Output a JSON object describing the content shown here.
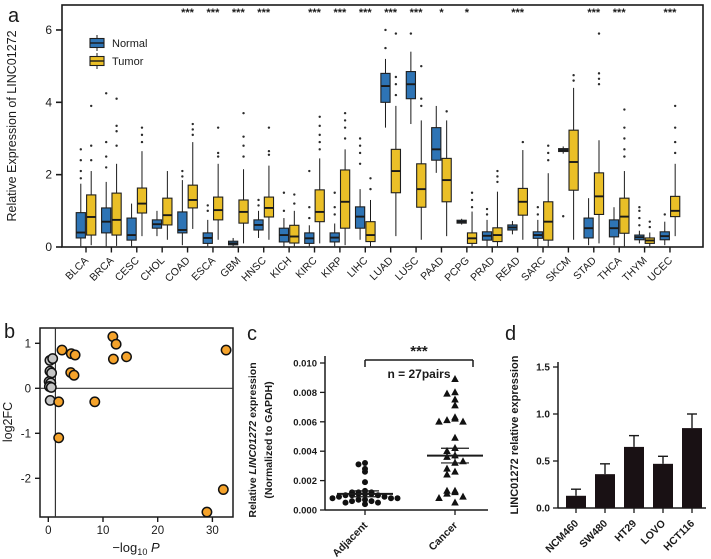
{
  "panel_letters": {
    "a": "a",
    "b": "b",
    "c": "c",
    "d": "d"
  },
  "colors": {
    "normal_box": "#2e74b5",
    "tumor_box": "#eabf27",
    "box_stroke": "#1f1f1f",
    "orange_point": "#f5a32b",
    "gray_point": "#c6c6c6",
    "point_stroke": "#111111",
    "bar_fill": "#191114",
    "axis": "#1a1a1a"
  },
  "chart_data": [
    {
      "type": "box",
      "panel": "a",
      "ylabel": "Relative Expression of LINC01272",
      "ylim": [
        0,
        6.69
      ],
      "yticks": [
        0,
        2,
        4,
        6
      ],
      "legend": [
        {
          "label": "Normal",
          "key": "normal_box"
        },
        {
          "label": "Tumor",
          "key": "tumor_box"
        }
      ],
      "categories": [
        "BLCA",
        "BRCA",
        "CESC",
        "CHOL",
        "COAD",
        "ESCA",
        "GBM",
        "HNSC",
        "KICH",
        "KIRC",
        "KIRP",
        "LIHC",
        "LUAD",
        "LUSC",
        "PAAD",
        "PCPG",
        "PRAD",
        "READ",
        "SARC",
        "SKCM",
        "STAD",
        "THCA",
        "THYM",
        "UCEC"
      ],
      "significance": [
        "",
        "",
        "",
        "",
        "***",
        "***",
        "***",
        "***",
        "",
        "***",
        "***",
        "***",
        "***",
        "***",
        "*",
        "*",
        "",
        "***",
        "",
        "",
        "***",
        "***",
        "",
        "***"
      ],
      "normal": [
        [
          0.02,
          0.25,
          0.4,
          0.95,
          1.75
        ],
        [
          0.02,
          0.39,
          0.7,
          1.08,
          1.8
        ],
        [
          0.02,
          0.19,
          0.33,
          0.8,
          1.2
        ],
        [
          0.3,
          0.52,
          0.63,
          0.75,
          1.0
        ],
        [
          0.05,
          0.39,
          0.47,
          0.97,
          1.85
        ],
        [
          0.02,
          0.1,
          0.25,
          0.39,
          0.75
        ],
        [
          0.02,
          0.06,
          0.1,
          0.16,
          0.25
        ],
        [
          0.25,
          0.47,
          0.61,
          0.75,
          1.0
        ],
        [
          0.02,
          0.14,
          0.33,
          0.52,
          0.8
        ],
        [
          0.02,
          0.1,
          0.24,
          0.39,
          0.6
        ],
        [
          0.02,
          0.14,
          0.26,
          0.39,
          0.65
        ],
        [
          0.2,
          0.52,
          0.84,
          1.11,
          1.6
        ],
        [
          3.3,
          4.0,
          4.45,
          4.8,
          5.2
        ],
        [
          3.4,
          4.1,
          4.5,
          4.85,
          5.4
        ],
        [
          2.05,
          2.4,
          2.7,
          3.3,
          3.9
        ],
        [
          0.62,
          0.66,
          0.7,
          0.74,
          0.78
        ],
        [
          0.02,
          0.19,
          0.31,
          0.42,
          0.75
        ],
        [
          0.35,
          0.47,
          0.54,
          0.61,
          0.72
        ],
        [
          0.02,
          0.24,
          0.33,
          0.42,
          0.75
        ],
        [
          2.58,
          2.64,
          2.68,
          2.72,
          2.78
        ],
        [
          0.05,
          0.25,
          0.52,
          0.8,
          1.35
        ],
        [
          0.05,
          0.28,
          0.52,
          0.75,
          1.1
        ],
        [
          0.1,
          0.2,
          0.27,
          0.33,
          0.45
        ],
        [
          0.05,
          0.2,
          0.3,
          0.42,
          0.7
        ]
      ],
      "tumor": [
        [
          0.05,
          0.33,
          0.83,
          1.44,
          2.1
        ],
        [
          0.03,
          0.33,
          0.75,
          1.49,
          2.3
        ],
        [
          0.3,
          0.94,
          1.2,
          1.63,
          2.65
        ],
        [
          0.2,
          0.61,
          0.88,
          1.35,
          2.1
        ],
        [
          0.5,
          1.08,
          1.3,
          1.71,
          2.9
        ],
        [
          0.2,
          0.75,
          1.02,
          1.38,
          2.3
        ],
        [
          0.1,
          0.66,
          0.97,
          1.3,
          2.15
        ],
        [
          0.2,
          0.83,
          1.08,
          1.38,
          2.25
        ],
        [
          0.02,
          0.11,
          0.29,
          0.6,
          1.0
        ],
        [
          0.1,
          0.7,
          0.97,
          1.58,
          2.45
        ],
        [
          0.05,
          0.52,
          1.25,
          2.13,
          2.7
        ],
        [
          0.02,
          0.15,
          0.33,
          0.7,
          1.3
        ],
        [
          0.3,
          1.5,
          2.1,
          2.7,
          3.9
        ],
        [
          0.2,
          1.1,
          1.6,
          2.3,
          3.5
        ],
        [
          0.3,
          1.25,
          1.85,
          2.45,
          3.5
        ],
        [
          0.02,
          0.1,
          0.24,
          0.39,
          0.98
        ],
        [
          0.02,
          0.15,
          0.33,
          0.53,
          1.53
        ],
        [
          0.2,
          0.88,
          1.25,
          1.62,
          2.68
        ],
        [
          0.02,
          0.19,
          0.7,
          1.25,
          2.04
        ],
        [
          0.2,
          1.57,
          2.35,
          3.23,
          4.4
        ],
        [
          0.1,
          0.9,
          1.4,
          2.05,
          2.95
        ],
        [
          0.02,
          0.38,
          0.84,
          1.35,
          2.1
        ],
        [
          0.02,
          0.1,
          0.18,
          0.25,
          0.4
        ],
        [
          0.3,
          0.84,
          1.0,
          1.4,
          2.3
        ]
      ],
      "normal_outliers": [
        [
          1.9,
          2.1,
          2.4,
          2.7
        ],
        [
          2.2,
          2.5,
          2.9,
          4.25
        ],
        [],
        [],
        [
          1.95,
          2.1
        ],
        [
          1.0,
          1.15
        ],
        [],
        [
          1.15,
          1.3
        ],
        [
          1.0,
          1.5
        ],
        [
          0.8,
          1.1,
          2.1
        ],
        [
          0.9,
          1.1,
          1.5
        ],
        [
          2.3,
          2.6,
          2.8,
          3.0
        ],
        [
          5.5,
          6.0
        ],
        [
          5.9
        ],
        [],
        [],
        [
          0.9,
          1.05
        ],
        [],
        [
          0.9,
          1.1
        ],
        [
          0.85
        ],
        [],
        [],
        [
          0.6,
          0.8,
          1.0,
          1.1
        ],
        [
          0.9
        ]
      ],
      "tumor_outliers": [
        [
          2.4,
          2.8,
          3.9
        ],
        [
          2.8,
          3.2,
          3.35,
          4.1
        ],
        [
          2.9,
          3.1,
          3.3
        ],
        [],
        [
          3.1,
          3.25,
          3.4
        ],
        [
          2.5,
          2.6,
          3.3
        ],
        [
          2.5,
          2.8,
          3.05,
          3.7
        ],
        [
          2.55,
          2.65,
          3.3
        ],
        [
          1.2,
          1.45
        ],
        [
          2.7,
          2.9,
          3.1,
          3.35,
          3.6
        ],
        [
          3.0,
          3.3,
          3.5,
          3.7
        ],
        [
          1.6,
          1.9
        ],
        [
          4.2,
          4.5,
          4.7,
          5.9
        ],
        [
          3.9,
          4.1,
          5.0
        ],
        [
          3.75
        ],
        [
          1.1,
          1.3,
          1.5
        ],
        [
          1.8,
          1.95,
          2.1
        ],
        [
          2.9
        ],
        [
          2.4,
          2.6,
          2.8
        ],
        [
          4.6,
          4.75
        ],
        [
          4.5,
          4.65,
          4.8,
          5.9
        ],
        [
          2.5,
          2.7,
          3.0,
          3.3,
          3.8
        ],
        [
          0.55,
          0.7
        ],
        [
          2.6,
          2.9,
          3.3,
          3.9
        ]
      ]
    },
    {
      "type": "scatter",
      "panel": "b",
      "xlabel_parts": [
        {
          "t": "−log"
        },
        {
          "t": "10",
          "style": "sub"
        },
        {
          "t": " "
        },
        {
          "t": "P",
          "style": "italic"
        }
      ],
      "ylabel": "log2FC",
      "xticks": [
        0,
        10,
        20,
        30
      ],
      "yticks": [
        1,
        0,
        -1,
        -2
      ],
      "xlim": [
        -1.5,
        33.8
      ],
      "ylim": [
        -2.85,
        1.34
      ],
      "vline": 1.3,
      "hline": 0,
      "series": [
        {
          "name": "not-significant",
          "color_key": "gray_point",
          "points": [
            [
              0.3,
              0.62
            ],
            [
              0.8,
              0.66
            ],
            [
              0.3,
              0.38
            ],
            [
              0.6,
              0.34
            ],
            [
              0.15,
              0.15
            ],
            [
              0.45,
              0.12
            ],
            [
              0.2,
              0.04
            ],
            [
              0.55,
              0.02
            ],
            [
              0.35,
              -0.27
            ]
          ]
        },
        {
          "name": "significant",
          "color_key": "orange_point",
          "points": [
            [
              2.5,
              0.85
            ],
            [
              4.2,
              0.77
            ],
            [
              4.9,
              0.74
            ],
            [
              11.8,
              1.15
            ],
            [
              12.4,
              0.98
            ],
            [
              11.9,
              0.65
            ],
            [
              14.3,
              0.7
            ],
            [
              32.5,
              0.85
            ],
            [
              4.1,
              0.35
            ],
            [
              4.7,
              0.29
            ],
            [
              1.9,
              -0.3
            ],
            [
              8.5,
              -0.3
            ],
            [
              1.9,
              -1.1
            ],
            [
              32.0,
              -2.25
            ],
            [
              29.0,
              -2.75
            ]
          ]
        }
      ]
    },
    {
      "type": "scatter",
      "panel": "c",
      "ylabel_line1_parts": [
        {
          "t": "Relative "
        },
        {
          "t": "LINC01272",
          "style": "italic"
        },
        {
          "t": " expression"
        }
      ],
      "ylabel_line2": "(Normalized to GAPDH)",
      "ytick_labels": [
        "0.000",
        "0.002",
        "0.004",
        "0.006",
        "0.008",
        "0.010"
      ],
      "yticks": [
        0,
        0.002,
        0.004,
        0.006,
        0.008,
        0.01
      ],
      "ylim": [
        0,
        0.0105
      ],
      "significance": "***",
      "n_label": "n = 27pairs",
      "groups": [
        {
          "name": "Adjacent",
          "marker": "circle",
          "mean": 0.0011,
          "sem": 0.0002,
          "values": [
            0.0032,
            0.0031,
            0.0028,
            0.0026,
            0.0019,
            0.0013,
            0.0012,
            0.0012,
            0.0012,
            0.0011,
            0.0011,
            0.0011,
            0.001,
            0.001,
            0.001,
            0.0009,
            0.0009,
            0.0008,
            0.0008,
            0.0008,
            0.0007,
            0.0007,
            0.0006,
            0.0006,
            0.0005,
            0.0005,
            0.0004
          ]
        },
        {
          "name": "Cancer",
          "marker": "triangle",
          "mean": 0.0037,
          "sem": 0.0005,
          "values": [
            0.0089,
            0.008,
            0.0079,
            0.0075,
            0.0071,
            0.0063,
            0.0062,
            0.0061,
            0.006,
            0.006,
            0.0049,
            0.0042,
            0.004,
            0.0037,
            0.0036,
            0.0033,
            0.0032,
            0.0028,
            0.0026,
            0.0024,
            0.0013,
            0.0013,
            0.0012,
            0.0011,
            0.0009,
            0.0008,
            0.0005
          ]
        }
      ]
    },
    {
      "type": "bar",
      "panel": "d",
      "ylabel": "LINC01272 relative expression",
      "categories": [
        "NCM460",
        "SW480",
        "HT29",
        "LOVO",
        "HCT116"
      ],
      "values": [
        0.13,
        0.36,
        0.65,
        0.47,
        0.85
      ],
      "errors": [
        0.07,
        0.11,
        0.12,
        0.08,
        0.15
      ],
      "yticks": [
        0,
        0.5,
        1.0,
        1.5
      ],
      "ytick_labels": [
        "0.0",
        "0.5",
        "1.0",
        "1.5"
      ],
      "ylim": [
        0,
        1.55
      ]
    }
  ]
}
